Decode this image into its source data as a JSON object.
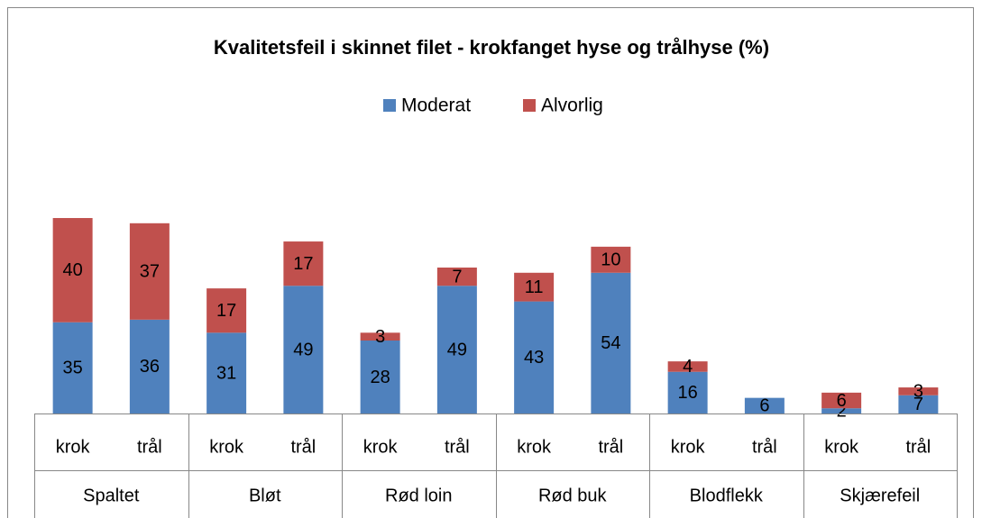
{
  "chart_data": {
    "type": "bar",
    "stacked": true,
    "title": "Kvalitetsfeil i skinnet filet - krokfanget hyse og trålhyse (%)",
    "groups": [
      "Spaltet",
      "Bløt",
      "Rød loin",
      "Rød buk",
      "Blodflekk",
      "Skjærefeil"
    ],
    "categories": [
      "krok",
      "trål",
      "krok",
      "trål",
      "krok",
      "trål",
      "krok",
      "trål",
      "krok",
      "trål",
      "krok",
      "trål"
    ],
    "series": [
      {
        "name": "Moderat",
        "color": "#4f81bd",
        "values": [
          35,
          36,
          31,
          49,
          28,
          49,
          43,
          54,
          16,
          6,
          2,
          7
        ]
      },
      {
        "name": "Alvorlig",
        "color": "#c0504d",
        "values": [
          40,
          37,
          17,
          17,
          3,
          7,
          11,
          10,
          4,
          null,
          6,
          3
        ]
      }
    ],
    "legend": "top"
  }
}
